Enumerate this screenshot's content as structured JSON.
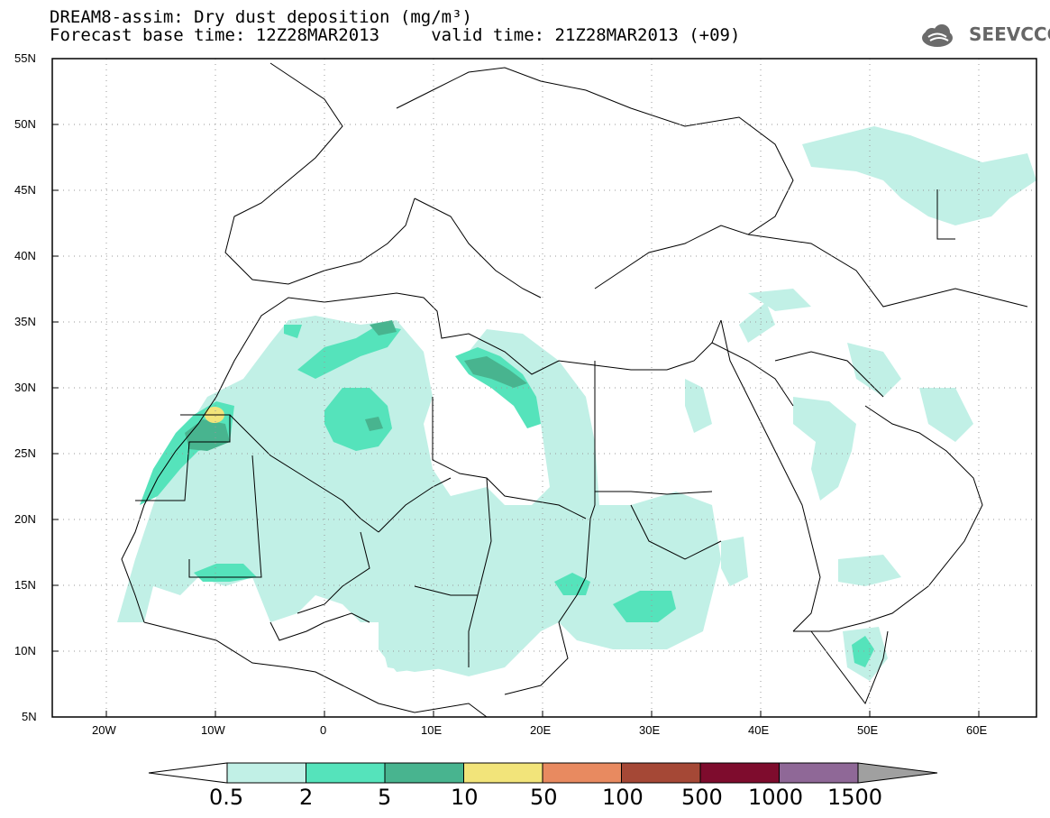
{
  "header": {
    "title_line1": "DREAM8-assim: Dry dust deposition (mg/m³)",
    "title_line2": "Forecast base time: 12Z28MAR2013     valid time: 21Z28MAR2013 (+09)",
    "logo_text": "SEEVCCC",
    "logo_icon": "cloud-icon"
  },
  "map": {
    "lat_labels": [
      "55N",
      "50N",
      "45N",
      "40N",
      "35N",
      "30N",
      "25N",
      "20N",
      "15N",
      "10N",
      "5N"
    ],
    "lon_labels": [
      "20W",
      "10W",
      "0",
      "10E",
      "20E",
      "30E",
      "40E",
      "50E",
      "60E"
    ],
    "lon_range": [
      -25,
      65
    ],
    "lat_range": [
      5,
      55
    ],
    "grid": "dotted",
    "colors": {
      "level_0_5": "#c1f0e6",
      "level_2": "#55e3bb",
      "level_5": "#48b48f",
      "level_10": "#f2e47a",
      "borders": "#000000"
    }
  },
  "colorbar": {
    "thresholds": [
      "0.5",
      "2",
      "5",
      "10",
      "50",
      "100",
      "500",
      "1000",
      "1500"
    ],
    "colors": [
      "#c1f0e6",
      "#55e3bb",
      "#48b48f",
      "#f2e47a",
      "#e88a60",
      "#a54836",
      "#7e0c2d",
      "#8f6897",
      "#a0a0a0"
    ]
  }
}
